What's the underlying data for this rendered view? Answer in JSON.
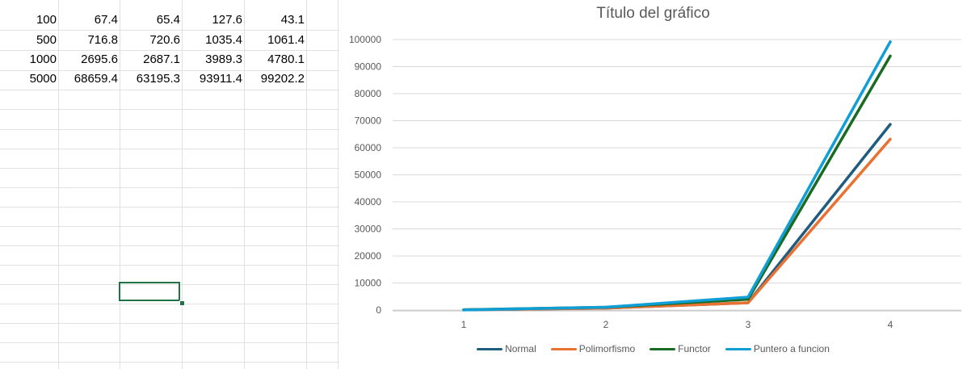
{
  "sheet": {
    "rows": [
      [
        "100",
        "67.4",
        "65.4",
        "127.6",
        "43.1"
      ],
      [
        "500",
        "716.8",
        "720.6",
        "1035.4",
        "1061.4"
      ],
      [
        "1000",
        "2695.6",
        "2687.1",
        "3989.3",
        "4780.1"
      ],
      [
        "5000",
        "68659.4",
        "63195.3",
        "93911.4",
        "99202.2"
      ]
    ]
  },
  "chart_data": {
    "type": "line",
    "title": "Título del gráfico",
    "categories": [
      "1",
      "2",
      "3",
      "4"
    ],
    "ylim": [
      0,
      100000
    ],
    "yticks": [
      "0",
      "10000",
      "20000",
      "30000",
      "40000",
      "50000",
      "60000",
      "70000",
      "80000",
      "90000",
      "100000"
    ],
    "grid": true,
    "legend_position": "bottom",
    "series": [
      {
        "name": "Normal",
        "color": "#1f5c80",
        "values": [
          67.4,
          716.8,
          2695.6,
          68659.4
        ]
      },
      {
        "name": "Polimorfismo",
        "color": "#e97132",
        "values": [
          65.4,
          720.6,
          2687.1,
          63195.3
        ]
      },
      {
        "name": "Functor",
        "color": "#196b24",
        "values": [
          127.6,
          1035.4,
          3989.3,
          93911.4
        ]
      },
      {
        "name": "Puntero a funcion",
        "color": "#0f9ed5",
        "values": [
          43.1,
          1061.4,
          4780.1,
          99202.2
        ]
      }
    ]
  }
}
